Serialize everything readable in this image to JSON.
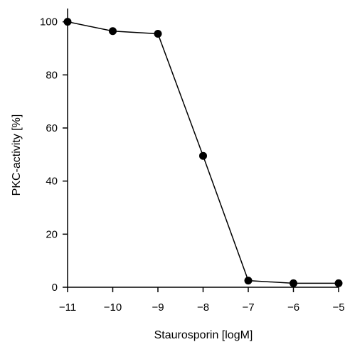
{
  "chart_data": {
    "type": "line",
    "title": "",
    "xlabel": "Staurosporin [logM]",
    "ylabel": "PKC-activity [%]",
    "xlim": [
      -11,
      -5
    ],
    "ylim": [
      0,
      105
    ],
    "x_ticks": [
      -11,
      -10,
      -9,
      -8,
      -7,
      -6,
      -5
    ],
    "y_ticks": [
      0,
      20,
      40,
      60,
      80,
      100
    ],
    "x_tick_labels": [
      "−11",
      "−10",
      "−9",
      "−8",
      "−7",
      "−6",
      "−5"
    ],
    "y_tick_labels": [
      "0",
      "20",
      "40",
      "60",
      "80",
      "100"
    ],
    "grid": false,
    "legend": "none",
    "colors": {
      "line": "#000000",
      "marker": "#000000"
    },
    "series": [
      {
        "x": [
          -11,
          -10,
          -9,
          -8,
          -7,
          -6,
          -5
        ],
        "y": [
          100,
          96.5,
          95.5,
          49.5,
          2.5,
          1.5,
          1.5
        ]
      }
    ]
  }
}
